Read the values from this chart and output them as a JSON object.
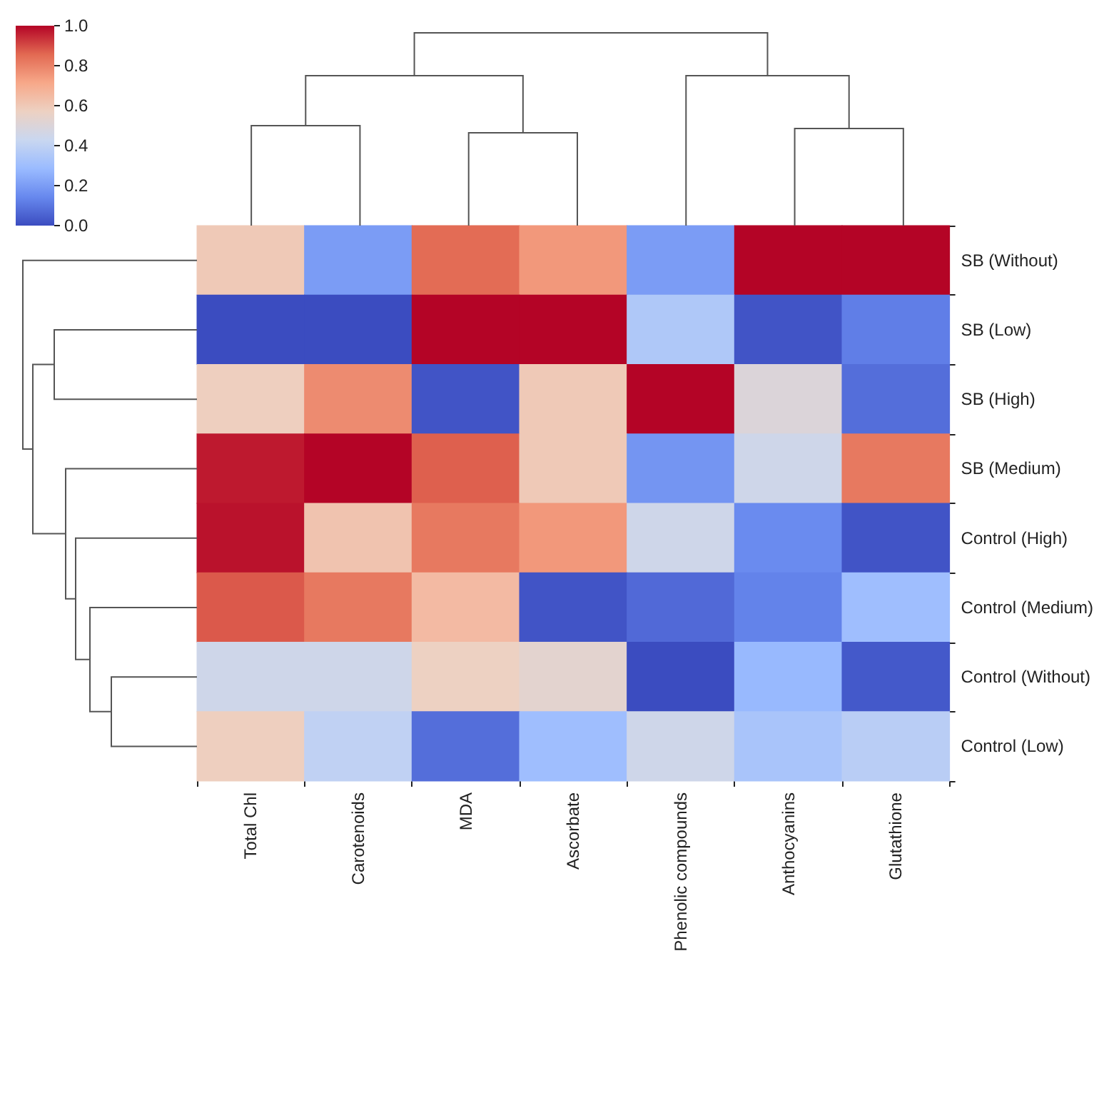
{
  "chart_data": {
    "type": "heatmap",
    "categories": [
      "Total Chl",
      "Carotenoids",
      "MDA",
      "Ascorbate",
      "Phenolic compounds",
      "Anthocyanins",
      "Glutathione"
    ],
    "y_categories": [
      "SB (Without)",
      "SB (Low)",
      "SB (High)",
      "SB (Medium)",
      "Control (High)",
      "Control (Medium)",
      "Control (Without)",
      "Control (Low)"
    ],
    "cells": [
      [
        0.6,
        0.2,
        0.85,
        0.75,
        0.2,
        1.0,
        1.0
      ],
      [
        0.0,
        0.0,
        1.0,
        1.0,
        0.35,
        0.02,
        0.12
      ],
      [
        0.58,
        0.78,
        0.02,
        0.6,
        1.0,
        0.5,
        0.08
      ],
      [
        0.97,
        1.0,
        0.87,
        0.6,
        0.18,
        0.45,
        0.82
      ],
      [
        0.98,
        0.62,
        0.82,
        0.75,
        0.45,
        0.15,
        0.02
      ],
      [
        0.88,
        0.82,
        0.65,
        0.02,
        0.07,
        0.13,
        0.3
      ],
      [
        0.45,
        0.45,
        0.57,
        0.53,
        0.0,
        0.28,
        0.03
      ],
      [
        0.58,
        0.4,
        0.08,
        0.3,
        0.45,
        0.33,
        0.38
      ]
    ],
    "clim": [
      0,
      1
    ],
    "cticks": [
      {
        "value": 0,
        "label": "0.0"
      },
      {
        "value": 0.2,
        "label": "0.2"
      },
      {
        "value": 0.4,
        "label": "0.4"
      },
      {
        "value": 0.6,
        "label": "0.6"
      },
      {
        "value": 0.8,
        "label": "0.8"
      },
      {
        "value": 1,
        "label": "1.0"
      }
    ]
  }
}
